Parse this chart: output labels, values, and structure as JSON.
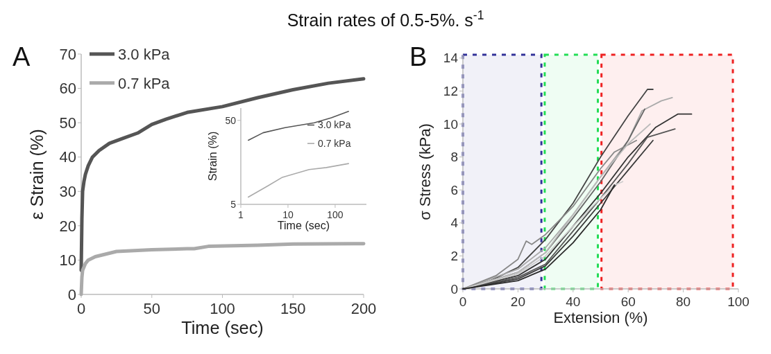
{
  "chart_data": [
    {
      "type": "line",
      "title": "Strain rates of 0.5-5%. s$^{-1}$",
      "xlabel": "Time (sec)",
      "ylabel": "ε  Strain (%)",
      "annotations": [
        "A"
      ],
      "xlim": [
        0,
        200
      ],
      "ylim": [
        0,
        70
      ],
      "xticks": [
        0,
        50,
        100,
        150,
        200
      ],
      "yticks": [
        0,
        10,
        20,
        30,
        40,
        50,
        60,
        70
      ],
      "grid": false,
      "legend": "top left",
      "marker": "none",
      "line_style": "solid",
      "series": [
        {
          "name": "3.0 kPa",
          "color": "#555555",
          "x": [
            0,
            0.5,
            1,
            2,
            3,
            5,
            8,
            12.7,
            20,
            30,
            40,
            50,
            60,
            75,
            100,
            125,
            150,
            175,
            200
          ],
          "values": [
            7,
            22,
            30,
            33,
            35,
            37.5,
            40,
            41.9,
            44,
            45.5,
            47,
            49.5,
            51,
            53,
            54.7,
            57.3,
            59.6,
            61.5,
            62.8
          ]
        },
        {
          "name": "0.7 kPa",
          "color": "#aaaaaa",
          "x": [
            0,
            0.5,
            1,
            3,
            5,
            10,
            15,
            25,
            50,
            75,
            80,
            90,
            125,
            150,
            200
          ],
          "values": [
            0,
            5,
            7,
            9,
            10,
            11,
            11.5,
            12.5,
            13,
            13.3,
            13.3,
            14,
            14.3,
            14.7,
            14.8
          ]
        }
      ]
    },
    {
      "type": "line",
      "xlabel": "Time (sec)",
      "ylabel": "Strain (%)",
      "log": "xy",
      "xlim": [
        1,
        460
      ],
      "ylim": [
        5,
        70
      ],
      "xticks": [
        1,
        10,
        100
      ],
      "yticks": [
        5,
        50
      ],
      "grid": false,
      "legend": "right",
      "marker": "none",
      "line_style": "solid",
      "series": [
        {
          "name": "3.0 kPa",
          "color": "#555555",
          "x": [
            1.44,
            2.97,
            8.7,
            36,
            83,
            192
          ],
          "values": [
            29,
            35.6,
            40.9,
            46.8,
            53.6,
            64
          ]
        },
        {
          "name": "0.7 kPa",
          "color": "#aaaaaa",
          "x": [
            1.44,
            3.76,
            7.6,
            28,
            65,
            192
          ],
          "values": [
            6.1,
            8.3,
            10.5,
            13,
            13.7,
            15.3
          ]
        }
      ]
    },
    {
      "type": "line",
      "xlabel": "Extension (%)",
      "ylabel": "σ Stress (kPa)",
      "annotations": [
        "B"
      ],
      "xlim": [
        0,
        100
      ],
      "ylim": [
        0,
        14.2
      ],
      "xticks": [
        0,
        20,
        40,
        60,
        80,
        100
      ],
      "yticks": [
        0,
        2,
        4,
        6,
        8,
        10,
        12,
        14
      ],
      "grid": false,
      "legend": false,
      "marker": "none",
      "line_style": "solid",
      "bands": [
        {
          "axis": "x",
          "from": 0,
          "to": 28.5,
          "color": "#333399"
        },
        {
          "axis": "x",
          "from": 29.7,
          "to": 49,
          "color": "#22dd55"
        },
        {
          "axis": "x",
          "from": 50.3,
          "to": 98,
          "color": "#ee2222"
        }
      ],
      "series": [
        {
          "color": "#444444",
          "x": [
            0,
            10,
            20,
            30,
            40,
            50,
            60,
            67,
            69
          ],
          "values": [
            0,
            0.5,
            1.3,
            3,
            5.2,
            8,
            10.5,
            12.1,
            12.1
          ]
        },
        {
          "color": "#aaaaaa",
          "x": [
            0,
            20,
            30,
            40,
            50,
            60,
            65,
            72,
            76
          ],
          "values": [
            0,
            1.2,
            2.5,
            4.5,
            6.8,
            9,
            10.8,
            11.4,
            11.6
          ]
        },
        {
          "color": "#333333",
          "x": [
            0,
            20,
            30,
            40,
            50,
            60,
            70,
            78,
            83
          ],
          "values": [
            0,
            0.8,
            1.8,
            3.8,
            5.8,
            8,
            9.8,
            10.6,
            10.6
          ]
        },
        {
          "color": "#555555",
          "x": [
            0,
            20,
            30,
            40,
            50,
            60,
            67,
            77
          ],
          "values": [
            0,
            0.7,
            1.5,
            3.5,
            5.5,
            7.6,
            9.2,
            9.7
          ]
        },
        {
          "color": "#666666",
          "x": [
            0,
            20,
            30,
            40,
            50,
            60,
            66
          ],
          "values": [
            0,
            1,
            2.2,
            4.3,
            6.5,
            9,
            10.9
          ]
        },
        {
          "color": "#888888",
          "x": [
            0,
            12,
            20,
            23,
            25,
            30,
            40,
            50,
            55,
            63
          ],
          "values": [
            0,
            0.8,
            1.8,
            2.9,
            2.7,
            3.3,
            5,
            7.3,
            8.3,
            9
          ]
        },
        {
          "color": "#bbbbbb",
          "x": [
            0,
            20,
            30,
            40,
            50,
            60,
            68
          ],
          "values": [
            0,
            1,
            2.2,
            4.5,
            6.8,
            8.8,
            10
          ]
        },
        {
          "color": "#3a3a3a",
          "x": [
            0,
            20,
            30,
            40,
            50,
            60,
            69
          ],
          "values": [
            0,
            0.6,
            1.4,
            3.2,
            5.2,
            7.2,
            9
          ]
        },
        {
          "color": "#cccccc",
          "x": [
            0,
            20,
            30,
            40,
            50,
            55,
            58
          ],
          "values": [
            0,
            0.9,
            2,
            3.8,
            5.5,
            6.3,
            6.5
          ]
        },
        {
          "color": "#2a2a2a",
          "x": [
            0,
            20,
            30,
            40,
            50,
            55
          ],
          "values": [
            0,
            0.5,
            1.2,
            2.8,
            4.8,
            6.3
          ]
        }
      ]
    }
  ]
}
